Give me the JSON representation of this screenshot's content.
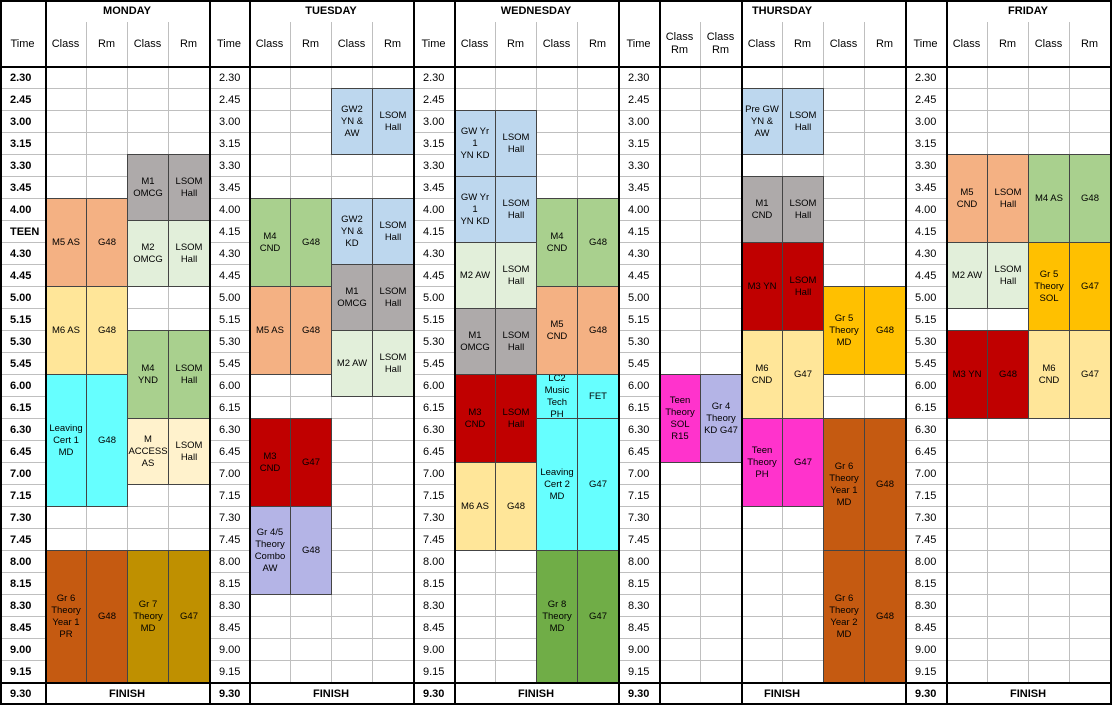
{
  "days": [
    {
      "name": "MONDAY",
      "cols": [
        "Class",
        "Rm",
        "Class",
        "Rm"
      ]
    },
    {
      "name": "TUESDAY",
      "cols": [
        "Class",
        "Rm",
        "Class",
        "Rm"
      ]
    },
    {
      "name": "WEDNESDAY",
      "cols": [
        "Class",
        "Rm",
        "Class",
        "Rm"
      ]
    },
    {
      "name": "THURSDAY",
      "cols": [
        "Class\nRm",
        "Class\nRm",
        "Class",
        "Rm",
        "Class",
        "Rm"
      ]
    },
    {
      "name": "FRIDAY",
      "cols": [
        "Class",
        "Rm",
        "Class",
        "Rm"
      ]
    }
  ],
  "time_header": "Time",
  "times": [
    "2.30",
    "2.45",
    "3.00",
    "3.15",
    "3.30",
    "3.45",
    "4.00",
    "4.15",
    "4.30",
    "4.45",
    "5.00",
    "5.15",
    "5.30",
    "5.45",
    "6.00",
    "6.15",
    "6.30",
    "6.45",
    "7.00",
    "7.15",
    "7.30",
    "7.45",
    "8.00",
    "8.15",
    "8.30",
    "8.45",
    "9.00",
    "9.15"
  ],
  "first_column_times": [
    "2.30",
    "2.45",
    "3.00",
    "3.15",
    "3.30",
    "3.45",
    "4.00",
    "TEEN",
    "4.30",
    "4.45",
    "5.00",
    "5.15",
    "5.30",
    "5.45",
    "6.00",
    "6.15",
    "6.30",
    "6.45",
    "7.00",
    "7.15",
    "7.30",
    "7.45",
    "8.00",
    "8.15",
    "8.30",
    "8.45",
    "9.00",
    "9.15"
  ],
  "end_time": "9.30",
  "finish_label": "FINISH",
  "colors": {
    "salmon": "#f4b183",
    "yellow": "#ffe699",
    "green": "#a9d08e",
    "grey": "#aeaaaa",
    "lightgreen": "#e2efda",
    "blue": "#bdd7ee",
    "cyan": "#66ffff",
    "red": "#c00000",
    "brown": "#c55a11",
    "olive": "#bf9000",
    "darkgreen": "#70ad47",
    "orange": "#ffc000",
    "magenta": "#ff33cc",
    "periwinkle": "#b4b4e6",
    "cream": "#fff2cc"
  },
  "blocks": [
    {
      "c": 1,
      "span": 1,
      "r0": 6,
      "r1": 9,
      "text": "M5 AS",
      "color": "salmon"
    },
    {
      "c": 2,
      "span": 1,
      "r0": 6,
      "r1": 9,
      "text": "G48",
      "color": "salmon"
    },
    {
      "c": 3,
      "span": 1,
      "r0": 4,
      "r1": 6,
      "text": "M1\nOMCG",
      "color": "grey"
    },
    {
      "c": 4,
      "span": 1,
      "r0": 4,
      "r1": 6,
      "text": "LSOM\nHall",
      "color": "grey"
    },
    {
      "c": 3,
      "span": 1,
      "r0": 7,
      "r1": 9,
      "text": "M2\nOMCG",
      "color": "lightgreen"
    },
    {
      "c": 4,
      "span": 1,
      "r0": 7,
      "r1": 9,
      "text": "LSOM\nHall",
      "color": "lightgreen"
    },
    {
      "c": 1,
      "span": 1,
      "r0": 10,
      "r1": 13,
      "text": "M6 AS",
      "color": "yellow"
    },
    {
      "c": 2,
      "span": 1,
      "r0": 10,
      "r1": 13,
      "text": "G48",
      "color": "yellow"
    },
    {
      "c": 3,
      "span": 1,
      "r0": 12,
      "r1": 15,
      "text": "M4\nYND",
      "color": "green"
    },
    {
      "c": 4,
      "span": 1,
      "r0": 12,
      "r1": 15,
      "text": "LSOM\nHall",
      "color": "green"
    },
    {
      "c": 1,
      "span": 1,
      "r0": 14,
      "r1": 19,
      "text": "Leaving\nCert 1\nMD",
      "color": "cyan"
    },
    {
      "c": 2,
      "span": 1,
      "r0": 14,
      "r1": 19,
      "text": "G48",
      "color": "cyan"
    },
    {
      "c": 3,
      "span": 1,
      "r0": 16,
      "r1": 18,
      "text": "M\nACCESS\nAS",
      "color": "cream"
    },
    {
      "c": 4,
      "span": 1,
      "r0": 16,
      "r1": 18,
      "text": "LSOM\nHall",
      "color": "cream"
    },
    {
      "c": 1,
      "span": 1,
      "r0": 22,
      "r1": 27,
      "text": "Gr 6\nTheory\nYear 1\nPR",
      "color": "brown"
    },
    {
      "c": 2,
      "span": 1,
      "r0": 22,
      "r1": 27,
      "text": "G48",
      "color": "brown"
    },
    {
      "c": 3,
      "span": 1,
      "r0": 22,
      "r1": 27,
      "text": "Gr 7\nTheory\nMD",
      "color": "olive"
    },
    {
      "c": 4,
      "span": 1,
      "r0": 22,
      "r1": 27,
      "text": "G47",
      "color": "olive"
    },
    {
      "c": 8,
      "span": 1,
      "r0": 1,
      "r1": 3,
      "text": "GW2\nYN &\nAW",
      "color": "blue"
    },
    {
      "c": 9,
      "span": 1,
      "r0": 1,
      "r1": 3,
      "text": "LSOM\nHall",
      "color": "blue"
    },
    {
      "c": 8,
      "span": 1,
      "r0": 6,
      "r1": 8,
      "text": "GW2\nYN &\nKD",
      "color": "blue"
    },
    {
      "c": 9,
      "span": 1,
      "r0": 6,
      "r1": 8,
      "text": "LSOM\nHall",
      "color": "blue"
    },
    {
      "c": 6,
      "span": 1,
      "r0": 6,
      "r1": 9,
      "text": "M4\nCND",
      "color": "green"
    },
    {
      "c": 7,
      "span": 1,
      "r0": 6,
      "r1": 9,
      "text": "G48",
      "color": "green"
    },
    {
      "c": 8,
      "span": 1,
      "r0": 9,
      "r1": 11,
      "text": "M1\nOMCG",
      "color": "grey"
    },
    {
      "c": 9,
      "span": 1,
      "r0": 9,
      "r1": 11,
      "text": "LSOM\nHall",
      "color": "grey"
    },
    {
      "c": 6,
      "span": 1,
      "r0": 10,
      "r1": 13,
      "text": "M5 AS",
      "color": "salmon"
    },
    {
      "c": 7,
      "span": 1,
      "r0": 10,
      "r1": 13,
      "text": "G48",
      "color": "salmon"
    },
    {
      "c": 8,
      "span": 1,
      "r0": 12,
      "r1": 14,
      "text": "M2 AW",
      "color": "lightgreen"
    },
    {
      "c": 9,
      "span": 1,
      "r0": 12,
      "r1": 14,
      "text": "LSOM\nHall",
      "color": "lightgreen"
    },
    {
      "c": 6,
      "span": 1,
      "r0": 16,
      "r1": 19,
      "text": "M3\nCND",
      "color": "red"
    },
    {
      "c": 7,
      "span": 1,
      "r0": 16,
      "r1": 19,
      "text": "G47",
      "color": "red"
    },
    {
      "c": 6,
      "span": 1,
      "r0": 20,
      "r1": 23,
      "text": "Gr 4/5\nTheory\nCombo\nAW",
      "color": "periwinkle"
    },
    {
      "c": 7,
      "span": 1,
      "r0": 20,
      "r1": 23,
      "text": "G48",
      "color": "periwinkle"
    },
    {
      "c": 11,
      "span": 1,
      "r0": 2,
      "r1": 4,
      "text": "GW Yr\n1\nYN KD",
      "color": "blue"
    },
    {
      "c": 12,
      "span": 1,
      "r0": 2,
      "r1": 4,
      "text": "LSOM\nHall",
      "color": "blue"
    },
    {
      "c": 11,
      "span": 1,
      "r0": 5,
      "r1": 7,
      "text": "GW Yr\n1\nYN KD",
      "color": "blue"
    },
    {
      "c": 12,
      "span": 1,
      "r0": 5,
      "r1": 7,
      "text": "LSOM\nHall",
      "color": "blue"
    },
    {
      "c": 13,
      "span": 1,
      "r0": 6,
      "r1": 9,
      "text": "M4\nCND",
      "color": "green"
    },
    {
      "c": 14,
      "span": 1,
      "r0": 6,
      "r1": 9,
      "text": "G48",
      "color": "green"
    },
    {
      "c": 11,
      "span": 1,
      "r0": 8,
      "r1": 10,
      "text": "M2 AW",
      "color": "lightgreen"
    },
    {
      "c": 12,
      "span": 1,
      "r0": 8,
      "r1": 10,
      "text": "LSOM\nHall",
      "color": "lightgreen"
    },
    {
      "c": 13,
      "span": 1,
      "r0": 10,
      "r1": 13,
      "text": "M5\nCND",
      "color": "salmon"
    },
    {
      "c": 14,
      "span": 1,
      "r0": 10,
      "r1": 13,
      "text": "G48",
      "color": "salmon"
    },
    {
      "c": 11,
      "span": 1,
      "r0": 11,
      "r1": 13,
      "text": "M1\nOMCG",
      "color": "grey"
    },
    {
      "c": 12,
      "span": 1,
      "r0": 11,
      "r1": 13,
      "text": "LSOM\nHall",
      "color": "grey"
    },
    {
      "c": 11,
      "span": 1,
      "r0": 14,
      "r1": 17,
      "text": "M3\nCND",
      "color": "red"
    },
    {
      "c": 12,
      "span": 1,
      "r0": 14,
      "r1": 17,
      "text": "LSOM\nHall",
      "color": "red"
    },
    {
      "c": 13,
      "span": 1,
      "r0": 14,
      "r1": 15,
      "text": "LC2\nMusic\nTech\nPH",
      "color": "cyan"
    },
    {
      "c": 14,
      "span": 1,
      "r0": 14,
      "r1": 15,
      "text": "FET",
      "color": "cyan"
    },
    {
      "c": 13,
      "span": 1,
      "r0": 16,
      "r1": 21,
      "text": "Leaving\nCert 2\nMD",
      "color": "cyan"
    },
    {
      "c": 14,
      "span": 1,
      "r0": 16,
      "r1": 21,
      "text": "G47",
      "color": "cyan"
    },
    {
      "c": 11,
      "span": 1,
      "r0": 18,
      "r1": 21,
      "text": "M6 AS",
      "color": "yellow"
    },
    {
      "c": 12,
      "span": 1,
      "r0": 18,
      "r1": 21,
      "text": "G48",
      "color": "yellow"
    },
    {
      "c": 13,
      "span": 1,
      "r0": 22,
      "r1": 27,
      "text": "Gr 8\nTheory\nMD",
      "color": "darkgreen"
    },
    {
      "c": 14,
      "span": 1,
      "r0": 22,
      "r1": 27,
      "text": "G47",
      "color": "darkgreen"
    },
    {
      "c": 18,
      "span": 1,
      "r0": 1,
      "r1": 3,
      "text": "Pre GW\nYN &\nAW",
      "color": "blue"
    },
    {
      "c": 19,
      "span": 1,
      "r0": 1,
      "r1": 3,
      "text": "LSOM\nHall",
      "color": "blue"
    },
    {
      "c": 18,
      "span": 1,
      "r0": 5,
      "r1": 7,
      "text": "M1\nCND",
      "color": "grey"
    },
    {
      "c": 19,
      "span": 1,
      "r0": 5,
      "r1": 7,
      "text": "LSOM\nHall",
      "color": "grey"
    },
    {
      "c": 18,
      "span": 1,
      "r0": 8,
      "r1": 11,
      "text": "M3 YN",
      "color": "red"
    },
    {
      "c": 19,
      "span": 1,
      "r0": 8,
      "r1": 11,
      "text": "LSOM\nHall",
      "color": "red"
    },
    {
      "c": 20,
      "span": 1,
      "r0": 10,
      "r1": 13,
      "text": "Gr 5\nTheory\nMD",
      "color": "orange"
    },
    {
      "c": 21,
      "span": 1,
      "r0": 10,
      "r1": 13,
      "text": "G48",
      "color": "orange"
    },
    {
      "c": 18,
      "span": 1,
      "r0": 12,
      "r1": 15,
      "text": "M6\nCND",
      "color": "yellow"
    },
    {
      "c": 19,
      "span": 1,
      "r0": 12,
      "r1": 15,
      "text": "G47",
      "color": "yellow"
    },
    {
      "c": 16,
      "span": 1,
      "r0": 14,
      "r1": 17,
      "text": "Teen\nTheory\nSOL\nR15",
      "color": "magenta"
    },
    {
      "c": 17,
      "span": 1,
      "r0": 14,
      "r1": 17,
      "text": "Gr 4\nTheory\nKD G47",
      "color": "periwinkle"
    },
    {
      "c": 18,
      "span": 1,
      "r0": 16,
      "r1": 19,
      "text": "Teen\nTheory\nPH",
      "color": "magenta"
    },
    {
      "c": 19,
      "span": 1,
      "r0": 16,
      "r1": 19,
      "text": "G47",
      "color": "magenta"
    },
    {
      "c": 20,
      "span": 1,
      "r0": 16,
      "r1": 21,
      "text": "Gr 6\nTheory\nYear 1\nMD",
      "color": "brown"
    },
    {
      "c": 21,
      "span": 1,
      "r0": 16,
      "r1": 21,
      "text": "G48",
      "color": "brown"
    },
    {
      "c": 20,
      "span": 1,
      "r0": 22,
      "r1": 27,
      "text": "Gr 6\nTheory\nYear 2\nMD",
      "color": "brown"
    },
    {
      "c": 21,
      "span": 1,
      "r0": 22,
      "r1": 27,
      "text": "G48",
      "color": "brown"
    },
    {
      "c": 23,
      "span": 1,
      "r0": 4,
      "r1": 7,
      "text": "M5\nCND",
      "color": "salmon"
    },
    {
      "c": 24,
      "span": 1,
      "r0": 4,
      "r1": 7,
      "text": "LSOM\nHall",
      "color": "salmon"
    },
    {
      "c": 25,
      "span": 1,
      "r0": 4,
      "r1": 7,
      "text": "M4 AS",
      "color": "green"
    },
    {
      "c": 26,
      "span": 1,
      "r0": 4,
      "r1": 7,
      "text": "G48",
      "color": "green"
    },
    {
      "c": 23,
      "span": 1,
      "r0": 8,
      "r1": 10,
      "text": "M2 AW",
      "color": "lightgreen"
    },
    {
      "c": 24,
      "span": 1,
      "r0": 8,
      "r1": 10,
      "text": "LSOM\nHall",
      "color": "lightgreen"
    },
    {
      "c": 25,
      "span": 1,
      "r0": 8,
      "r1": 11,
      "text": "Gr 5\nTheory\nSOL",
      "color": "orange"
    },
    {
      "c": 26,
      "span": 1,
      "r0": 8,
      "r1": 11,
      "text": "G47",
      "color": "orange"
    },
    {
      "c": 23,
      "span": 1,
      "r0": 12,
      "r1": 15,
      "text": "M3 YN",
      "color": "red"
    },
    {
      "c": 24,
      "span": 1,
      "r0": 12,
      "r1": 15,
      "text": "G48",
      "color": "red"
    },
    {
      "c": 25,
      "span": 1,
      "r0": 12,
      "r1": 15,
      "text": "M6\nCND",
      "color": "yellow"
    },
    {
      "c": 26,
      "span": 1,
      "r0": 12,
      "r1": 15,
      "text": "G47",
      "color": "yellow"
    }
  ]
}
